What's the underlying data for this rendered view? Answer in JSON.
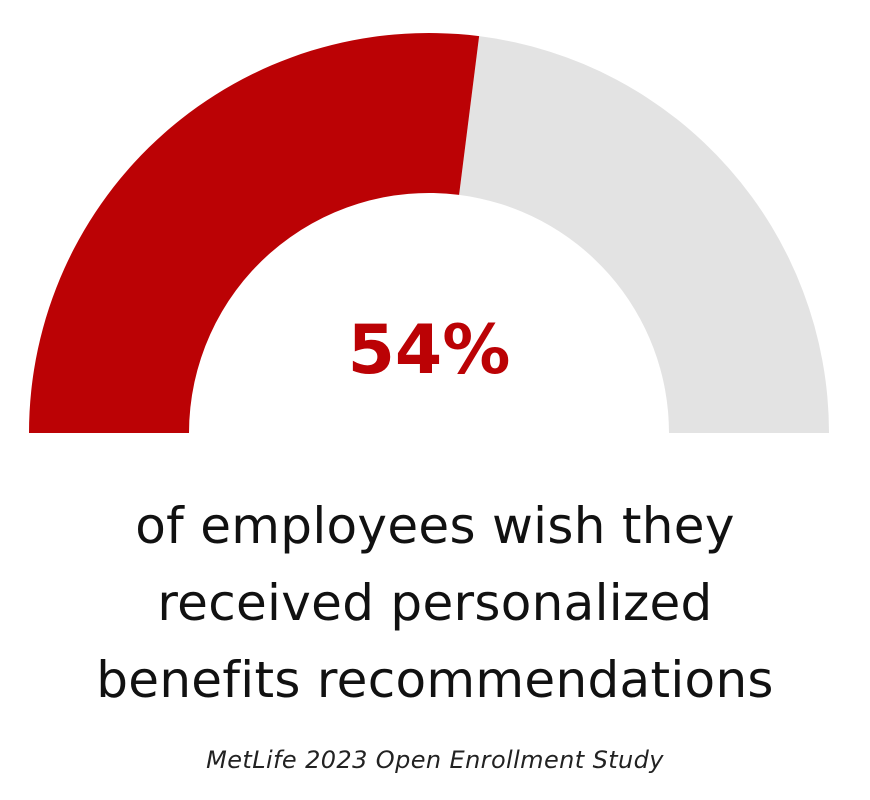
{
  "chart_data": {
    "type": "gauge",
    "value": 54,
    "min": 0,
    "max": 100,
    "value_label": "54%",
    "colors": {
      "filled": "#bb0205",
      "remaining": "#e3e3e3",
      "value_text": "#bb0205"
    }
  },
  "caption": {
    "lines": [
      "of employees wish they",
      "received personalized",
      "benefits recommendations"
    ]
  },
  "source": "MetLife 2023 Open Enrollment Study"
}
